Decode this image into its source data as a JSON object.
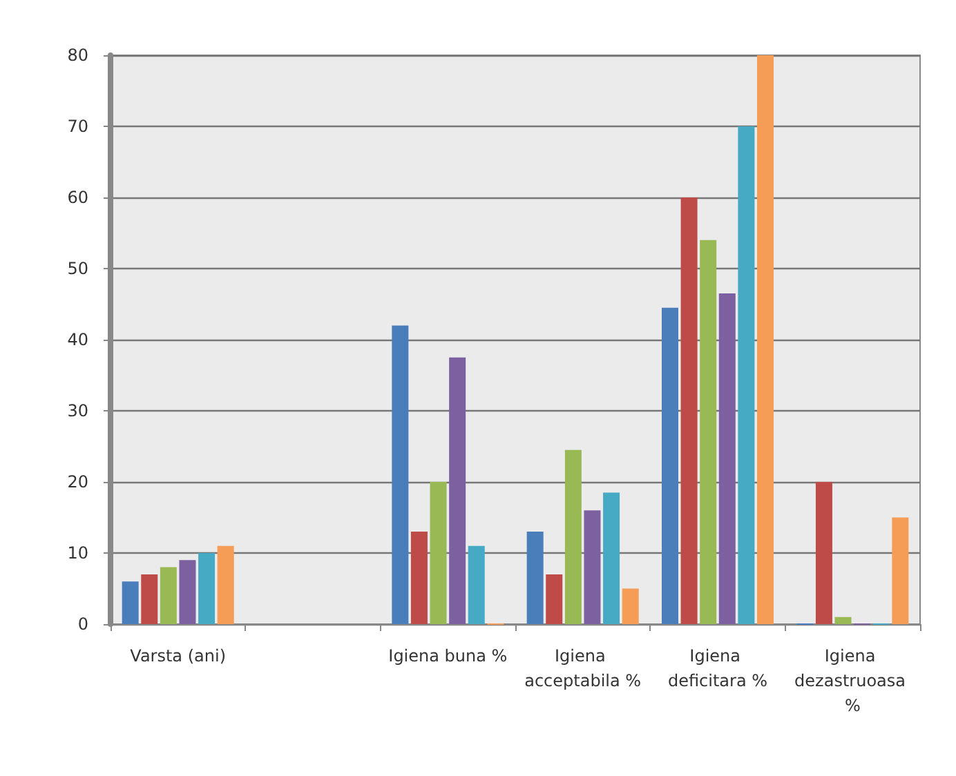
{
  "chart_data": {
    "type": "bar",
    "categories": [
      "Varsta (ani)",
      null,
      "Igiena buna %",
      "Igiena acceptabila %",
      "Igiena deficitara %",
      "Igiena dezastruoasa %"
    ],
    "series": [
      {
        "color": "#4a7ebb",
        "values": [
          6,
          null,
          42,
          13,
          44.5,
          0
        ]
      },
      {
        "color": "#be4b48",
        "values": [
          7,
          null,
          13,
          7,
          60,
          20
        ]
      },
      {
        "color": "#98b954",
        "values": [
          8,
          null,
          20,
          24.5,
          54,
          1
        ]
      },
      {
        "color": "#7d60a0",
        "values": [
          9,
          null,
          37.5,
          16,
          46.5,
          0
        ]
      },
      {
        "color": "#46aac5",
        "values": [
          10,
          null,
          11,
          18.5,
          70,
          0
        ]
      },
      {
        "color": "#f59d56",
        "values": [
          11,
          null,
          0,
          5,
          80,
          15
        ]
      }
    ],
    "ylim": [
      0,
      80
    ],
    "yticks": [
      0,
      10,
      20,
      30,
      40,
      50,
      60,
      70,
      80
    ],
    "grid": "y"
  }
}
